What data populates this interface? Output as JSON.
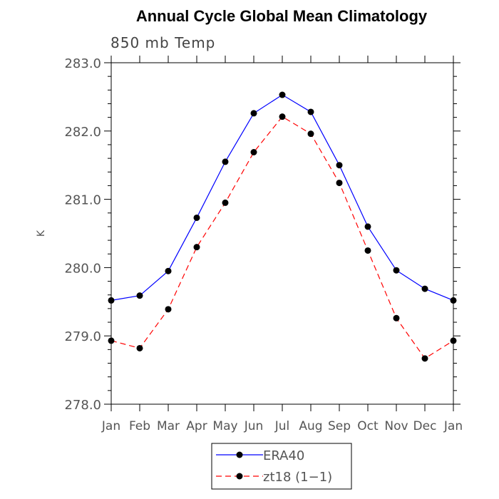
{
  "chart_data": {
    "type": "line",
    "title": "Annual Cycle Global Mean Climatology",
    "subtitle": "850 mb Temp",
    "xlabel": "",
    "ylabel": "K",
    "categories": [
      "Jan",
      "Feb",
      "Mar",
      "Apr",
      "May",
      "Jun",
      "Jul",
      "Aug",
      "Sep",
      "Oct",
      "Nov",
      "Dec",
      "Jan"
    ],
    "ylim": [
      278.0,
      283.0
    ],
    "yticks": [
      "278.0",
      "279.0",
      "280.0",
      "281.0",
      "282.0",
      "283.0"
    ],
    "grid": false,
    "legend_position": "bottom-center",
    "series": [
      {
        "name": "ERA40",
        "color": "#0000ff",
        "dash": "solid",
        "values": [
          279.52,
          279.59,
          279.95,
          280.73,
          281.55,
          282.26,
          282.53,
          282.28,
          281.5,
          280.6,
          279.96,
          279.69,
          279.52
        ]
      },
      {
        "name": "zt18 (1−1)",
        "color": "#ff0000",
        "dash": "dashed",
        "values": [
          278.93,
          278.82,
          279.39,
          280.3,
          280.95,
          281.69,
          282.21,
          281.96,
          281.24,
          280.25,
          279.26,
          278.67,
          278.93
        ]
      }
    ]
  }
}
